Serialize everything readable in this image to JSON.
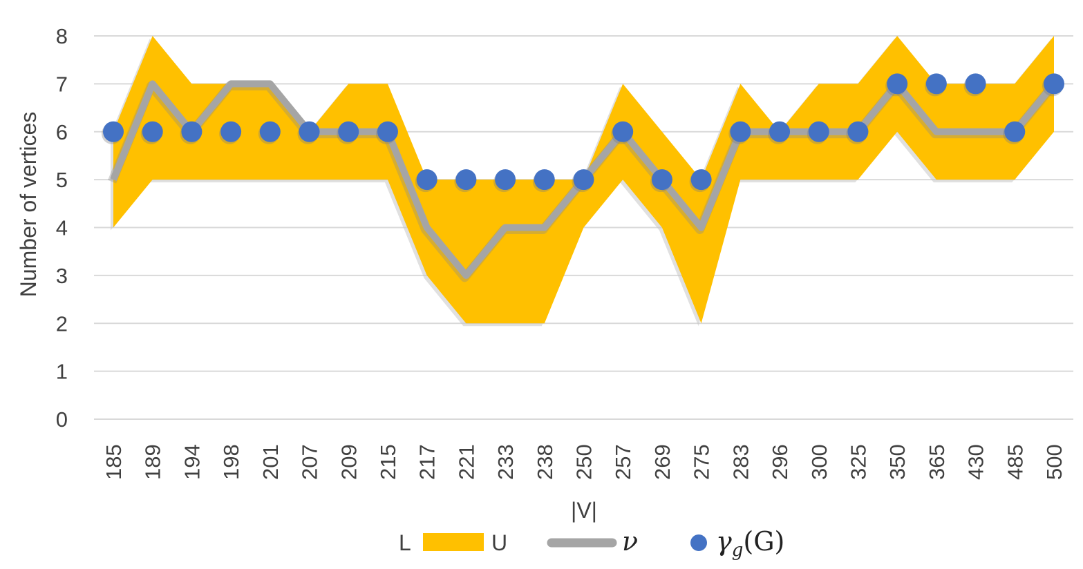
{
  "chart_data": {
    "type": "area",
    "ylabel": "Number of vertices",
    "xlabel": "|V|",
    "ylim": [
      0,
      8
    ],
    "yticks": [
      "0",
      "1",
      "2",
      "3",
      "4",
      "5",
      "6",
      "7",
      "8"
    ],
    "categories": [
      "185",
      "189",
      "194",
      "198",
      "201",
      "207",
      "209",
      "215",
      "217",
      "221",
      "233",
      "238",
      "250",
      "257",
      "269",
      "275",
      "283",
      "296",
      "300",
      "325",
      "350",
      "365",
      "430",
      "485",
      "500"
    ],
    "grid": true,
    "series": [
      {
        "name": "L",
        "values": [
          4,
          5,
          5,
          5,
          5,
          5,
          5,
          5,
          3,
          2,
          2,
          2,
          4,
          5,
          4,
          2,
          5,
          5,
          5,
          5,
          6,
          5,
          5,
          5,
          6
        ]
      },
      {
        "name": "U",
        "values": [
          6,
          8,
          7,
          7,
          7,
          6,
          7,
          7,
          5,
          5,
          5,
          5,
          5,
          7,
          6,
          5,
          7,
          6,
          7,
          7,
          8,
          7,
          7,
          7,
          8
        ]
      },
      {
        "name": "ν",
        "values": [
          5,
          7,
          6,
          7,
          7,
          6,
          6,
          6,
          4,
          3,
          4,
          4,
          5,
          6,
          5,
          4,
          6,
          6,
          6,
          6,
          7,
          6,
          6,
          6,
          7
        ]
      },
      {
        "name": "γg(G)",
        "values": [
          6,
          6,
          6,
          6,
          6,
          6,
          6,
          6,
          5,
          5,
          5,
          5,
          5,
          6,
          5,
          5,
          6,
          6,
          6,
          6,
          7,
          7,
          7,
          6,
          7
        ]
      }
    ],
    "legend_position": "bottom",
    "colors": {
      "band": "#FFC000",
      "nu_line": "#A5A5A5",
      "points": "#4472C4",
      "grid": "#D9D9D9",
      "text": "#404040"
    }
  },
  "legend": {
    "lower_label": "L",
    "upper_label": "U",
    "nu_label": "ν",
    "gamma_symbol": "γ",
    "gamma_subscript": "g",
    "gamma_arg": "(G)"
  }
}
